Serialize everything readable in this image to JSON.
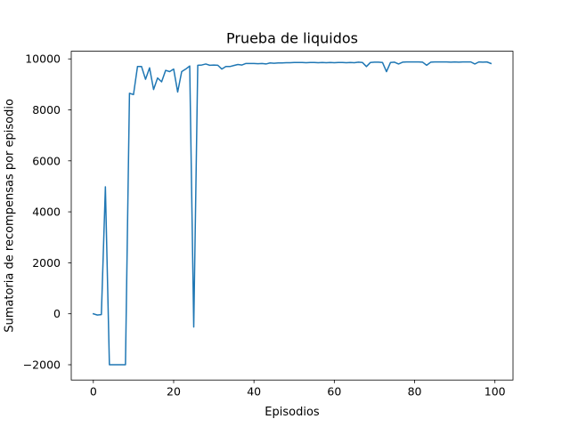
{
  "chart_data": {
    "type": "line",
    "title": "Prueba de liquidos",
    "xlabel": "Episodios",
    "ylabel": "Sumatoria de recompensas por episodio",
    "xlim": [
      -5.5,
      104.5
    ],
    "ylim": [
      -2600,
      10300
    ],
    "xticks": [
      0,
      20,
      40,
      60,
      80,
      100
    ],
    "yticks": [
      -2000,
      0,
      2000,
      4000,
      6000,
      8000,
      10000
    ],
    "xtick_labels": [
      "0",
      "20",
      "40",
      "60",
      "80",
      "100"
    ],
    "ytick_labels": [
      "−2000",
      "0",
      "2000",
      "4000",
      "6000",
      "8000",
      "10000"
    ],
    "grid": false,
    "line_color": "#1f77b4",
    "series": [
      {
        "name": "",
        "x": [
          0,
          1,
          2,
          3,
          4,
          5,
          6,
          7,
          8,
          9,
          10,
          11,
          12,
          13,
          14,
          15,
          16,
          17,
          18,
          19,
          20,
          21,
          22,
          23,
          24,
          25,
          26,
          27,
          28,
          29,
          30,
          31,
          32,
          33,
          34,
          35,
          36,
          37,
          38,
          39,
          40,
          41,
          42,
          43,
          44,
          45,
          46,
          47,
          48,
          49,
          50,
          51,
          52,
          53,
          54,
          55,
          56,
          57,
          58,
          59,
          60,
          61,
          62,
          63,
          64,
          65,
          66,
          67,
          68,
          69,
          70,
          71,
          72,
          73,
          74,
          75,
          76,
          77,
          78,
          79,
          80,
          81,
          82,
          83,
          84,
          85,
          86,
          87,
          88,
          89,
          90,
          91,
          92,
          93,
          94,
          95,
          96,
          97,
          98,
          99
        ],
        "y": [
          0,
          -50,
          -30,
          4980,
          -2000,
          -2000,
          -2000,
          -2000,
          -2000,
          8650,
          8600,
          9700,
          9700,
          9200,
          9650,
          8800,
          9250,
          9100,
          9550,
          9500,
          9600,
          8700,
          9500,
          9600,
          9720,
          -520,
          9750,
          9760,
          9800,
          9750,
          9760,
          9750,
          9600,
          9700,
          9700,
          9740,
          9780,
          9760,
          9820,
          9820,
          9820,
          9810,
          9820,
          9800,
          9840,
          9830,
          9840,
          9840,
          9850,
          9850,
          9860,
          9860,
          9860,
          9850,
          9860,
          9860,
          9850,
          9860,
          9850,
          9860,
          9850,
          9860,
          9860,
          9850,
          9860,
          9850,
          9870,
          9860,
          9700,
          9860,
          9870,
          9870,
          9860,
          9500,
          9860,
          9870,
          9800,
          9870,
          9880,
          9880,
          9880,
          9880,
          9870,
          9750,
          9870,
          9880,
          9880,
          9880,
          9880,
          9870,
          9880,
          9870,
          9880,
          9880,
          9880,
          9800,
          9880,
          9870,
          9880,
          9820
        ]
      }
    ]
  }
}
